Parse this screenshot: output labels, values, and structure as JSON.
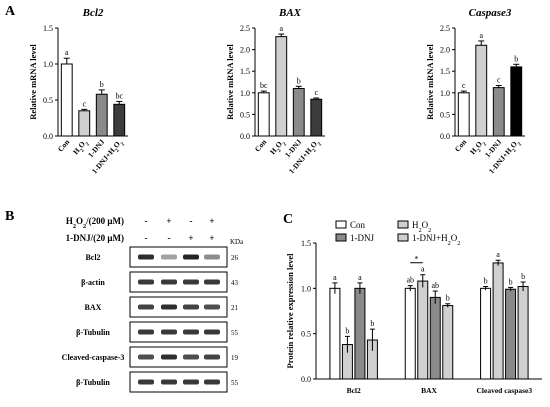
{
  "panels": {
    "a": "A",
    "b": "B",
    "c": "C"
  },
  "chart_data": [
    {
      "type": "bar",
      "id": "bcl2-mrna",
      "title": "Bcl2",
      "ylabel": "Relative mRNA level",
      "categories": [
        "Con",
        "H2O2",
        "1-DNJ",
        "1-DNJ+H2O2"
      ],
      "category_display": [
        {
          "base": "Con",
          "sub": "",
          "after": ""
        },
        {
          "base": "H",
          "sub": "2",
          "after": "O",
          "sub2": "2"
        },
        {
          "base": "1-DNJ",
          "sub": "",
          "after": ""
        },
        {
          "base": "1-DNJ+H",
          "sub": "2",
          "after": "O",
          "sub2": "2"
        }
      ],
      "values": [
        1.0,
        0.35,
        0.58,
        0.44
      ],
      "errors": [
        0.08,
        0.02,
        0.06,
        0.04
      ],
      "letters": [
        "a",
        "c",
        "b",
        "bc"
      ],
      "colors": [
        "#ffffff",
        "#d0d0d0",
        "#8a8a8a",
        "#3c3c3c"
      ],
      "ylim": [
        0,
        1.5
      ],
      "yticks": [
        "0.0",
        "0.5",
        "1.0",
        "1.5"
      ],
      "ytick_values": [
        0,
        0.5,
        1.0,
        1.5
      ]
    },
    {
      "type": "bar",
      "id": "bax-mrna",
      "title": "BAX",
      "ylabel": "Relative mRNA level",
      "categories": [
        "Con",
        "H2O2",
        "1-DNJ",
        "1-DNJ+H2O2"
      ],
      "category_display": [
        {
          "base": "Con",
          "sub": "",
          "after": ""
        },
        {
          "base": "H",
          "sub": "2",
          "after": "O",
          "sub2": "2"
        },
        {
          "base": "1-DNJ",
          "sub": "",
          "after": ""
        },
        {
          "base": "1-DNJ+H",
          "sub": "2",
          "after": "O",
          "sub2": "2"
        }
      ],
      "values": [
        1.0,
        2.3,
        1.1,
        0.85
      ],
      "errors": [
        0.04,
        0.06,
        0.05,
        0.03
      ],
      "letters": [
        "bc",
        "a",
        "b",
        "c"
      ],
      "colors": [
        "#ffffff",
        "#d0d0d0",
        "#8a8a8a",
        "#3c3c3c"
      ],
      "ylim": [
        0,
        2.5
      ],
      "yticks": [
        "0.0",
        "0.5",
        "1.0",
        "1.5",
        "2.0",
        "2.5"
      ],
      "ytick_values": [
        0,
        0.5,
        1.0,
        1.5,
        2.0,
        2.5
      ]
    },
    {
      "type": "bar",
      "id": "caspase3-mrna",
      "title": "Caspase3",
      "ylabel": "Relative mRNA level",
      "categories": [
        "Con",
        "H2O2",
        "1-DNJ",
        "1-DNJ+H2O2"
      ],
      "category_display": [
        {
          "base": "Con",
          "sub": "",
          "after": ""
        },
        {
          "base": "H",
          "sub": "2",
          "after": "O",
          "sub2": "2"
        },
        {
          "base": "1-DNJ",
          "sub": "",
          "after": ""
        },
        {
          "base": "1-DNJ+H",
          "sub": "2",
          "after": "O",
          "sub2": "2"
        }
      ],
      "values": [
        1.0,
        2.1,
        1.12,
        1.6
      ],
      "errors": [
        0.04,
        0.1,
        0.05,
        0.06
      ],
      "letters": [
        "c",
        "a",
        "c",
        "b"
      ],
      "colors": [
        "#ffffff",
        "#d0d0d0",
        "#8a8a8a",
        "#000000"
      ],
      "ylim": [
        0,
        2.5
      ],
      "yticks": [
        "0.0",
        "0.5",
        "1.0",
        "1.5",
        "2.0",
        "2.5"
      ],
      "ytick_values": [
        0,
        0.5,
        1.0,
        1.5,
        2.0,
        2.5
      ]
    },
    {
      "type": "bar",
      "id": "protein-expression",
      "ylabel": "Protein relative expression level",
      "categories": [
        "Bcl2",
        "BAX",
        "Cleaved caspase3"
      ],
      "series": [
        {
          "name": "Con",
          "color": "#ffffff",
          "values": [
            1.0,
            1.0,
            1.0
          ],
          "errors": [
            0.06,
            0.03,
            0.02
          ],
          "letters": [
            "a",
            "ab",
            "b"
          ]
        },
        {
          "name": "H2O2",
          "color": "#d0d0d0",
          "values": [
            0.38,
            1.08,
            1.28
          ],
          "errors": [
            0.09,
            0.07,
            0.03
          ],
          "letters": [
            "b",
            "a",
            "a"
          ]
        },
        {
          "name": "1-DNJ",
          "color": "#8a8a8a",
          "values": [
            1.0,
            0.9,
            0.99
          ],
          "errors": [
            0.06,
            0.07,
            0.02
          ],
          "letters": [
            "a",
            "ab",
            "b"
          ]
        },
        {
          "name": "1-DNJ+H2O2",
          "color": "#d0d0d0",
          "values": [
            0.43,
            0.81,
            1.02
          ],
          "errors": [
            0.12,
            0.02,
            0.05
          ],
          "letters": [
            "b",
            "b",
            "b"
          ]
        }
      ],
      "legend_display": [
        {
          "base": "Con",
          "sub": "",
          "after": ""
        },
        {
          "base": "H",
          "sub": "2",
          "after": "O",
          "sub2": "2"
        },
        {
          "base": "1-DNJ",
          "sub": "",
          "after": ""
        },
        {
          "base": "1-DNJ+H",
          "sub": "2",
          "after": "O",
          "sub2": "2"
        }
      ],
      "annotation": "*",
      "ylim": [
        0,
        1.5
      ],
      "yticks": [
        "0.0",
        "0.5",
        "1.0",
        "1.5"
      ],
      "ytick_values": [
        0,
        0.5,
        1.0,
        1.5
      ],
      "legend": "top"
    }
  ],
  "western_blot": {
    "treatments": [
      {
        "label": "H2O2/(200 μM)",
        "label_parts": {
          "base": "H",
          "sub": "2",
          "after": "O",
          "sub2": "2",
          "tail": "/(200 μM)"
        },
        "signs": [
          "-",
          "+",
          "-",
          "+"
        ]
      },
      {
        "label": "1-DNJ/(20 μM)",
        "label_parts": {
          "base": "1-DNJ/(20 μM)",
          "sub": "",
          "after": "",
          "sub2": "",
          "tail": ""
        },
        "signs": [
          "-",
          "-",
          "+",
          "+"
        ]
      }
    ],
    "kda_header": "KDa",
    "bands": [
      {
        "name": "Bcl2",
        "kda": "26",
        "intensity": [
          0.9,
          0.35,
          0.95,
          0.45
        ]
      },
      {
        "name": "β-actin",
        "kda": "43",
        "intensity": [
          0.85,
          0.85,
          0.85,
          0.85
        ]
      },
      {
        "name": "BAX",
        "kda": "21",
        "intensity": [
          0.8,
          0.9,
          0.8,
          0.75
        ]
      },
      {
        "name": "β-Tubulin",
        "kda": "55",
        "intensity": [
          0.85,
          0.85,
          0.85,
          0.85
        ]
      },
      {
        "name": "Cleaved-caspase-3",
        "kda": "19",
        "intensity": [
          0.75,
          0.9,
          0.75,
          0.8
        ]
      },
      {
        "name": "β-Tubulin",
        "kda": "55",
        "intensity": [
          0.85,
          0.85,
          0.85,
          0.85
        ]
      }
    ]
  }
}
